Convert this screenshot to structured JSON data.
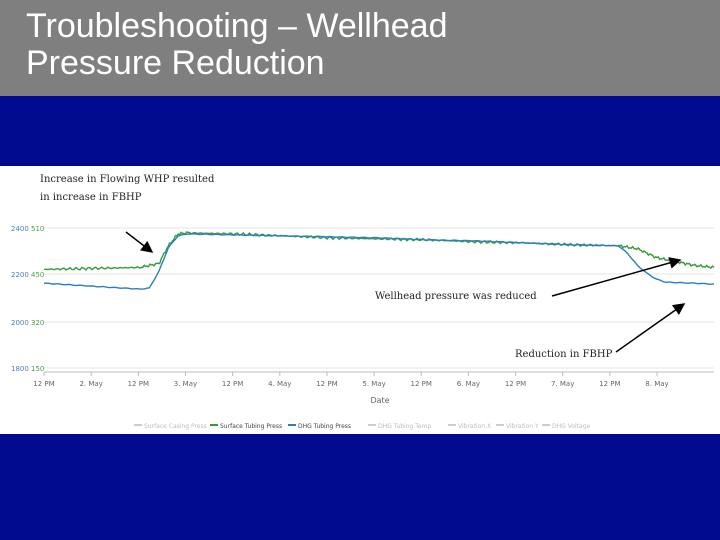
{
  "slide": {
    "title_line1": "Troubleshooting – Wellhead",
    "title_line2": "Pressure Reduction"
  },
  "colors": {
    "header_bg": "#7f7f7f",
    "slide_bg": "#000b8f",
    "green_series": "#3a9a3a",
    "blue_series": "#2a7fc0",
    "arrow": "#000000"
  },
  "annotations": {
    "whp_increase_line1": "Increase in Flowing WHP resulted",
    "whp_increase_line2": "in increase in FBHP",
    "whp_reduced": "Wellhead pressure was reduced",
    "fbhp_reduction": "Reduction in FBHP"
  },
  "chart_data": {
    "type": "line",
    "xlabel": "Date",
    "x_ticks": [
      "12 PM",
      "2. May",
      "12 PM",
      "3. May",
      "12 PM",
      "4. May",
      "12 PM",
      "5. May",
      "12 PM",
      "6. May",
      "12 PM",
      "7. May",
      "12 PM",
      "8. May"
    ],
    "y_left_ticks": [
      "2400",
      "2200",
      "2000",
      "1800"
    ],
    "y_right_ticks": [
      "510",
      "450",
      "320",
      "150"
    ],
    "grid": true,
    "legend_position": "bottom",
    "legend": [
      "Surface Casing Press",
      "Surface Tubing Press",
      "DHG Tubing Press",
      "DHG Tubing Temp",
      "Vibration X",
      "Vibration Y",
      "DHG Voltage"
    ],
    "series": [
      {
        "name": "Surface Tubing Press",
        "color": "#3a9a3a",
        "x": [
          0,
          0.5,
          1.0,
          1.2,
          1.3,
          1.4,
          1.5,
          2.0,
          2.5,
          3.0,
          3.5,
          4.0,
          4.5,
          5.0,
          5.5,
          6.0,
          6.2,
          6.4,
          6.6,
          6.8,
          7.0
        ],
        "y": [
          2270,
          2275,
          2280,
          2300,
          2390,
          2450,
          2455,
          2450,
          2440,
          2430,
          2425,
          2420,
          2410,
          2405,
          2395,
          2390,
          2375,
          2330,
          2310,
          2290,
          2280
        ]
      },
      {
        "name": "DHG Tubing Press",
        "color": "#2a7fc0",
        "x": [
          0,
          0.5,
          1.0,
          1.1,
          1.2,
          1.3,
          1.4,
          1.5,
          2.0,
          2.5,
          3.0,
          3.5,
          4.0,
          4.5,
          5.0,
          5.5,
          6.0,
          6.1,
          6.2,
          6.3,
          6.4,
          6.5,
          6.8,
          7.0
        ],
        "y": [
          2200,
          2185,
          2170,
          2175,
          2260,
          2380,
          2440,
          2450,
          2445,
          2440,
          2435,
          2430,
          2420,
          2415,
          2405,
          2395,
          2390,
          2350,
          2290,
          2250,
          2220,
          2205,
          2200,
          2195
        ]
      }
    ],
    "y_range": [
      1770,
      2480
    ],
    "x_range": [
      0,
      7
    ]
  }
}
